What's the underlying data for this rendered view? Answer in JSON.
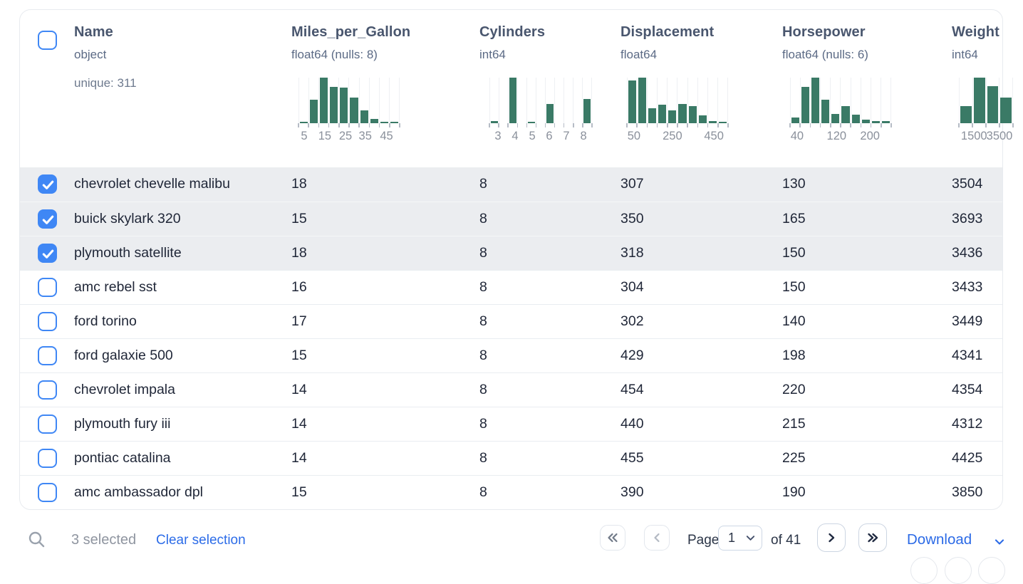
{
  "colors": {
    "accent_blue": "#3f87f5",
    "link_blue": "#2c6ce8",
    "histogram_green": "#3a7a66",
    "selected_row_bg": "#ebedf0",
    "header_text": "#49566e",
    "muted_text": "#5b6a85",
    "row_text": "#1f2637"
  },
  "table": {
    "select_all_checked": false,
    "columns": [
      {
        "key": "name",
        "label": "Name",
        "dtype": "object",
        "stat": "unique: 311"
      },
      {
        "key": "miles_per_gallon",
        "label": "Miles_per_Gallon",
        "dtype": "float64 (nulls: 8)",
        "histogram": {
          "type": "bar",
          "bins": [
            0.03,
            0.52,
            1.0,
            0.79,
            0.78,
            0.57,
            0.28,
            0.1,
            0.03,
            0.03
          ],
          "tick_labels": [
            {
              "text": "5",
              "pos": 0.056
            },
            {
              "text": "15",
              "pos": 0.26
            },
            {
              "text": "25",
              "pos": 0.465
            },
            {
              "text": "35",
              "pos": 0.66
            },
            {
              "text": "45",
              "pos": 0.87
            }
          ]
        }
      },
      {
        "key": "cylinders",
        "label": "Cylinders",
        "dtype": "int64",
        "histogram": {
          "type": "bar",
          "bins": [
            0.04,
            0,
            1.0,
            0,
            0.03,
            0,
            0.42,
            0,
            0,
            0,
            0.53
          ],
          "tick_labels": [
            {
              "text": "3",
              "pos": 0.083
            },
            {
              "text": "4",
              "pos": 0.25
            },
            {
              "text": "5",
              "pos": 0.417
            },
            {
              "text": "6",
              "pos": 0.583
            },
            {
              "text": "7",
              "pos": 0.75
            },
            {
              "text": "8",
              "pos": 0.917
            }
          ]
        }
      },
      {
        "key": "displacement",
        "label": "Displacement",
        "dtype": "float64",
        "histogram": {
          "type": "bar",
          "bins": [
            0.93,
            1.0,
            0.33,
            0.41,
            0.28,
            0.42,
            0.38,
            0.17,
            0.05,
            0.03
          ],
          "tick_labels": [
            {
              "text": "50",
              "pos": 0.07
            },
            {
              "text": "250",
              "pos": 0.45
            },
            {
              "text": "450",
              "pos": 0.86
            }
          ]
        }
      },
      {
        "key": "horsepower",
        "label": "Horsepower",
        "dtype": "float64 (nulls: 6)",
        "histogram": {
          "type": "bar",
          "bins": [
            0.13,
            0.8,
            1.0,
            0.52,
            0.2,
            0.38,
            0.18,
            0.08,
            0.05,
            0.04
          ],
          "tick_labels": [
            {
              "text": "40",
              "pos": 0.07
            },
            {
              "text": "120",
              "pos": 0.46
            },
            {
              "text": "200",
              "pos": 0.79
            }
          ]
        }
      },
      {
        "key": "weight",
        "label": "Weight",
        "dtype": "int64",
        "histogram": {
          "type": "bar",
          "bins": [
            0.38,
            1.0,
            0.81,
            0.57
          ],
          "tick_labels": [
            {
              "text": "1500",
              "pos": 0.28
            },
            {
              "text": "3500",
              "pos": 0.75
            }
          ]
        }
      }
    ],
    "rows": [
      {
        "selected": true,
        "cells": [
          "chevrolet chevelle malibu",
          "18",
          "8",
          "307",
          "130",
          "3504"
        ]
      },
      {
        "selected": true,
        "cells": [
          "buick skylark 320",
          "15",
          "8",
          "350",
          "165",
          "3693"
        ]
      },
      {
        "selected": true,
        "cells": [
          "plymouth satellite",
          "18",
          "8",
          "318",
          "150",
          "3436"
        ]
      },
      {
        "selected": false,
        "cells": [
          "amc rebel sst",
          "16",
          "8",
          "304",
          "150",
          "3433"
        ]
      },
      {
        "selected": false,
        "cells": [
          "ford torino",
          "17",
          "8",
          "302",
          "140",
          "3449"
        ]
      },
      {
        "selected": false,
        "cells": [
          "ford galaxie 500",
          "15",
          "8",
          "429",
          "198",
          "4341"
        ]
      },
      {
        "selected": false,
        "cells": [
          "chevrolet impala",
          "14",
          "8",
          "454",
          "220",
          "4354"
        ]
      },
      {
        "selected": false,
        "cells": [
          "plymouth fury iii",
          "14",
          "8",
          "440",
          "215",
          "4312"
        ]
      },
      {
        "selected": false,
        "cells": [
          "pontiac catalina",
          "14",
          "8",
          "455",
          "225",
          "4425"
        ]
      },
      {
        "selected": false,
        "cells": [
          "amc ambassador dpl",
          "15",
          "8",
          "390",
          "190",
          "3850"
        ]
      }
    ]
  },
  "footer": {
    "search_icon": "magnifier",
    "selected_text": "3 selected",
    "clear_label": "Clear selection",
    "page_label": "Page",
    "page_value": "1",
    "of_label": "of 41",
    "download_label": "Download"
  }
}
